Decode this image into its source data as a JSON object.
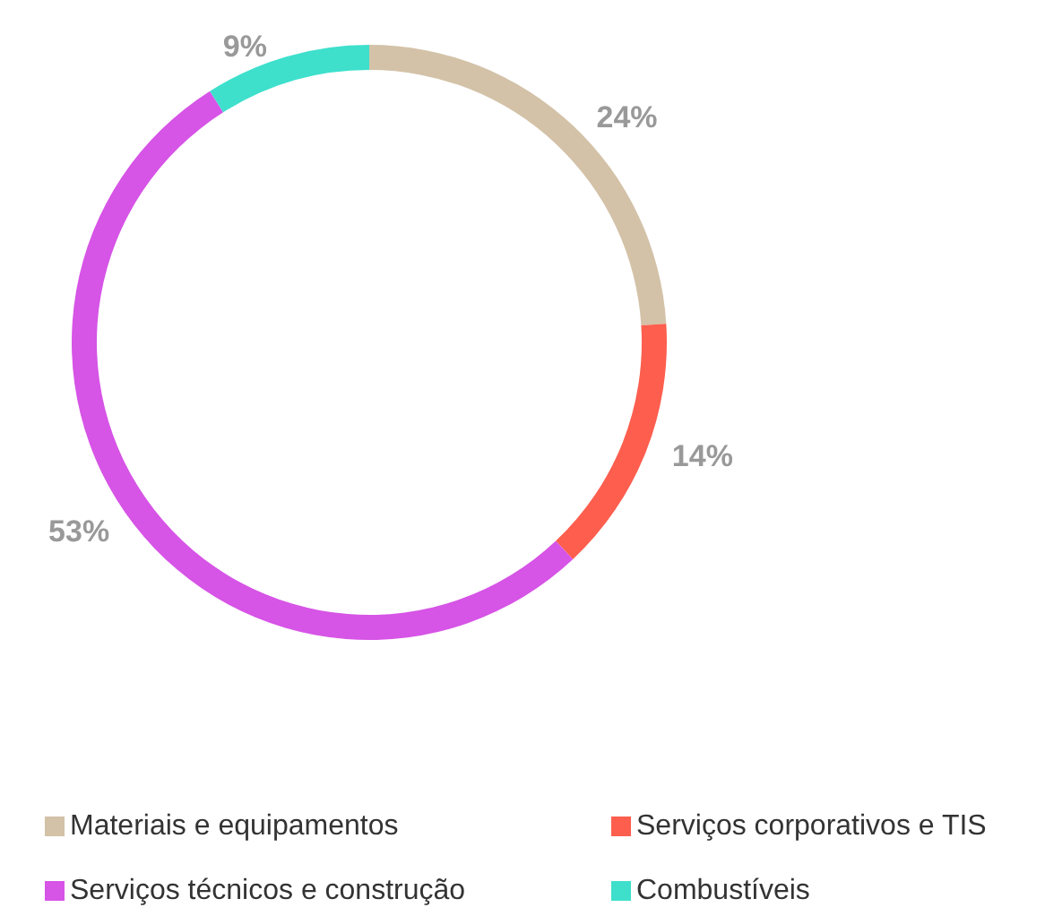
{
  "chart_data": {
    "type": "donut",
    "categories": [
      "Materiais e equipamentos",
      "Serviços corporativos e TIS",
      "Serviços técnicos e construção",
      "Combustíveis"
    ],
    "values": [
      24,
      14,
      53,
      9
    ],
    "colors": [
      "#d3c2a8",
      "#fd5e4e",
      "#d654e6",
      "#3ee0cc"
    ],
    "value_labels": [
      "24%",
      "14%",
      "53%",
      "9%"
    ],
    "legend": "bottom"
  }
}
